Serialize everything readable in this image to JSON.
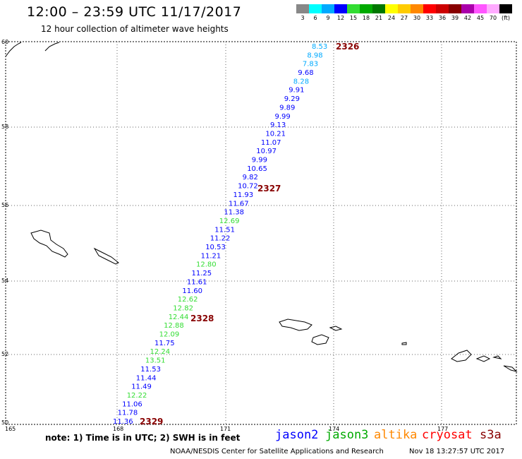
{
  "header": {
    "title": "12:00 – 23:59 UTC 11/17/2017",
    "subtitle": "12 hour collection of altimeter wave heights"
  },
  "scale": {
    "unit": "(ft)",
    "bins": [
      {
        "label": "3",
        "color": "#888888"
      },
      {
        "label": "6",
        "color": "#00ffff"
      },
      {
        "label": "9",
        "color": "#00aaff"
      },
      {
        "label": "12",
        "color": "#0000ff"
      },
      {
        "label": "15",
        "color": "#33dd33"
      },
      {
        "label": "18",
        "color": "#00aa00"
      },
      {
        "label": "21",
        "color": "#007700"
      },
      {
        "label": "24",
        "color": "#ffff00"
      },
      {
        "label": "27",
        "color": "#ffcc00"
      },
      {
        "label": "30",
        "color": "#ff8800"
      },
      {
        "label": "33",
        "color": "#ff0000"
      },
      {
        "label": "36",
        "color": "#cc0000"
      },
      {
        "label": "39",
        "color": "#880000"
      },
      {
        "label": "42",
        "color": "#aa00aa"
      },
      {
        "label": "45",
        "color": "#ff55ff"
      },
      {
        "label": "70",
        "color": "#ffaaff"
      },
      {
        "label": "",
        "color": "#000000"
      }
    ]
  },
  "axes": {
    "lat_labels": [
      "60",
      "58",
      "56",
      "54",
      "52",
      "50"
    ],
    "lon_labels": [
      "165",
      "168",
      "171",
      "174",
      "177"
    ]
  },
  "track_times": [
    {
      "label": "2326"
    },
    {
      "label": "2327"
    },
    {
      "label": "2328"
    },
    {
      "label": "2329"
    }
  ],
  "wave_heights": [
    {
      "value": "8.53",
      "sat": "jason2",
      "color": "#00aaff"
    },
    {
      "value": "8.98",
      "sat": "jason2",
      "color": "#00aaff"
    },
    {
      "value": "7.83",
      "sat": "jason2",
      "color": "#00aaff"
    },
    {
      "value": "9.68",
      "sat": "jason2",
      "color": "#0000ff"
    },
    {
      "value": "8.28",
      "sat": "jason2",
      "color": "#00aaff"
    },
    {
      "value": "9.91",
      "sat": "jason2",
      "color": "#0000ff"
    },
    {
      "value": "9.29",
      "sat": "jason2",
      "color": "#0000ff"
    },
    {
      "value": "9.89",
      "sat": "jason2",
      "color": "#0000ff"
    },
    {
      "value": "9.99",
      "sat": "jason2",
      "color": "#0000ff"
    },
    {
      "value": "9.13",
      "sat": "jason2",
      "color": "#0000ff"
    },
    {
      "value": "10.21",
      "sat": "jason2",
      "color": "#0000ff"
    },
    {
      "value": "11.07",
      "sat": "jason2",
      "color": "#0000ff"
    },
    {
      "value": "10.97",
      "sat": "jason2",
      "color": "#0000ff"
    },
    {
      "value": "9.99",
      "sat": "jason2",
      "color": "#0000ff"
    },
    {
      "value": "10.65",
      "sat": "jason2",
      "color": "#0000ff"
    },
    {
      "value": "9.82",
      "sat": "jason2",
      "color": "#0000ff"
    },
    {
      "value": "10.72",
      "sat": "jason2",
      "color": "#0000ff"
    },
    {
      "value": "11.93",
      "sat": "jason2",
      "color": "#0000ff"
    },
    {
      "value": "11.67",
      "sat": "jason2",
      "color": "#0000ff"
    },
    {
      "value": "11.38",
      "sat": "jason2",
      "color": "#0000ff"
    },
    {
      "value": "12.69",
      "sat": "jason2",
      "color": "#33dd33"
    },
    {
      "value": "11.51",
      "sat": "jason2",
      "color": "#0000ff"
    },
    {
      "value": "11.22",
      "sat": "jason2",
      "color": "#0000ff"
    },
    {
      "value": "10.53",
      "sat": "jason2",
      "color": "#0000ff"
    },
    {
      "value": "11.21",
      "sat": "jason2",
      "color": "#0000ff"
    },
    {
      "value": "12.80",
      "sat": "jason2",
      "color": "#33dd33"
    },
    {
      "value": "11.25",
      "sat": "jason2",
      "color": "#0000ff"
    },
    {
      "value": "11.61",
      "sat": "jason2",
      "color": "#0000ff"
    },
    {
      "value": "11.60",
      "sat": "jason2",
      "color": "#0000ff"
    },
    {
      "value": "12.62",
      "sat": "jason2",
      "color": "#33dd33"
    },
    {
      "value": "12.82",
      "sat": "jason2",
      "color": "#33dd33"
    },
    {
      "value": "12.44",
      "sat": "jason2",
      "color": "#33dd33"
    },
    {
      "value": "12.88",
      "sat": "jason2",
      "color": "#33dd33"
    },
    {
      "value": "12.09",
      "sat": "jason2",
      "color": "#33dd33"
    },
    {
      "value": "11.75",
      "sat": "jason2",
      "color": "#0000ff"
    },
    {
      "value": "12.24",
      "sat": "jason2",
      "color": "#33dd33"
    },
    {
      "value": "13.51",
      "sat": "jason2",
      "color": "#33dd33"
    },
    {
      "value": "11.53",
      "sat": "jason2",
      "color": "#0000ff"
    },
    {
      "value": "11.44",
      "sat": "jason2",
      "color": "#0000ff"
    },
    {
      "value": "11.49",
      "sat": "jason2",
      "color": "#0000ff"
    },
    {
      "value": "12.22",
      "sat": "jason2",
      "color": "#33dd33"
    },
    {
      "value": "11.06",
      "sat": "jason2",
      "color": "#0000ff"
    },
    {
      "value": "11.78",
      "sat": "jason2",
      "color": "#0000ff"
    },
    {
      "value": "11.36",
      "sat": "jason2",
      "color": "#0000ff"
    }
  ],
  "legend": {
    "note": "note: 1) Time is in UTC; 2) SWH is in feet",
    "satellites": [
      {
        "name": "jason2",
        "color": "#0000ff"
      },
      {
        "name": "jason3",
        "color": "#00aa00"
      },
      {
        "name": "altika",
        "color": "#ff8800"
      },
      {
        "name": "cryosat",
        "color": "#ff0000"
      },
      {
        "name": "s3a",
        "color": "#880000"
      }
    ]
  },
  "footer": {
    "credit": "NOAA/NESDIS Center for Satellite Applications and Research",
    "timestamp": "Nov 18 13:27:57 UTC 2017"
  }
}
